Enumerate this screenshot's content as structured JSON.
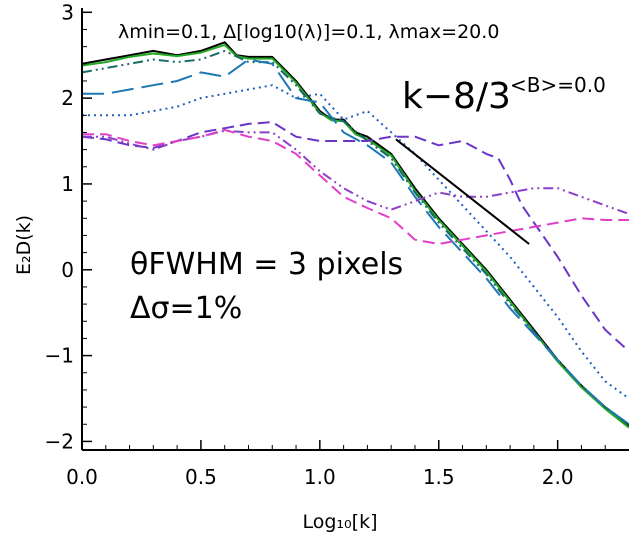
{
  "chart_data": {
    "type": "line",
    "xlabel": "Log₁₀[k]",
    "ylabel": "E₂D(k)",
    "xlim": [
      0.0,
      2.3
    ],
    "ylim": [
      -2.1,
      3.05
    ],
    "x_ticks": [
      0.0,
      0.5,
      1.0,
      1.5,
      2.0
    ],
    "x_tick_labels": [
      "0.0",
      "0.5",
      "1.0",
      "1.5",
      "2.0"
    ],
    "y_ticks": [
      -2,
      -1,
      0,
      1,
      2,
      3
    ],
    "y_tick_labels": [
      "−2",
      "−1",
      "0",
      "1",
      "2",
      "3"
    ],
    "grid": false,
    "annotations": {
      "params_text": "λmin=0.1, Δ[log10(λ)]=0.1, λmax=20.0",
      "slope_label": "k−8/3",
      "b_label": "<B>=0.0",
      "theta_label": "θFWHM = 3 pixels",
      "sigma_label": "Δσ=1%"
    },
    "reference_line": {
      "x": [
        1.32,
        1.88
      ],
      "y": [
        1.52,
        0.3
      ],
      "color": "#000000"
    },
    "series": [
      {
        "color": "#000000",
        "dash": "solid",
        "x": [
          0.0,
          0.1,
          0.2,
          0.3,
          0.4,
          0.5,
          0.6,
          0.65,
          0.7,
          0.8,
          0.9,
          1.0,
          1.05,
          1.1,
          1.15,
          1.2,
          1.3,
          1.4,
          1.5,
          1.6,
          1.7,
          1.8,
          1.9,
          2.0,
          2.1,
          2.2,
          2.3
        ],
        "y": [
          2.4,
          2.45,
          2.5,
          2.55,
          2.5,
          2.55,
          2.65,
          2.5,
          2.48,
          2.48,
          2.2,
          1.85,
          1.75,
          1.75,
          1.6,
          1.55,
          1.35,
          0.95,
          0.6,
          0.3,
          0.0,
          -0.35,
          -0.7,
          -1.05,
          -1.35,
          -1.6,
          -1.82
        ]
      },
      {
        "color": "#22aa22",
        "dash": "solid",
        "x": [
          0.0,
          0.1,
          0.2,
          0.3,
          0.4,
          0.5,
          0.6,
          0.65,
          0.7,
          0.8,
          0.9,
          1.0,
          1.05,
          1.1,
          1.15,
          1.2,
          1.3,
          1.4,
          1.5,
          1.6,
          1.7,
          1.8,
          1.9,
          2.0,
          2.1,
          2.2,
          2.3
        ],
        "y": [
          2.38,
          2.42,
          2.48,
          2.52,
          2.49,
          2.53,
          2.62,
          2.49,
          2.46,
          2.46,
          2.18,
          1.83,
          1.74,
          1.73,
          1.58,
          1.52,
          1.33,
          0.92,
          0.58,
          0.28,
          -0.02,
          -0.37,
          -0.72,
          -1.07,
          -1.37,
          -1.62,
          -1.84
        ]
      },
      {
        "color": "#1a6a6a",
        "dash": "dashdotdot",
        "x": [
          0.0,
          0.1,
          0.2,
          0.3,
          0.4,
          0.5,
          0.6,
          0.7,
          0.8,
          0.9,
          1.0,
          1.1,
          1.2,
          1.3,
          1.4,
          1.5,
          1.6,
          1.7,
          1.8,
          1.9,
          2.0,
          2.1,
          2.2,
          2.3
        ],
        "y": [
          2.3,
          2.35,
          2.4,
          2.45,
          2.42,
          2.45,
          2.55,
          2.42,
          2.42,
          2.15,
          1.82,
          1.73,
          1.5,
          1.3,
          0.9,
          0.55,
          0.25,
          -0.05,
          -0.4,
          -0.72,
          -1.05,
          -1.35,
          -1.6,
          -1.8
        ]
      },
      {
        "color": "#1f77b4",
        "dash": "longdash",
        "x": [
          0.0,
          0.1,
          0.2,
          0.3,
          0.4,
          0.5,
          0.6,
          0.7,
          0.8,
          0.9,
          1.0,
          1.1,
          1.2,
          1.3,
          1.4,
          1.5,
          1.6,
          1.7,
          1.8,
          1.9,
          2.0,
          2.1,
          2.2,
          2.3
        ],
        "y": [
          2.05,
          2.05,
          2.1,
          2.15,
          2.2,
          2.3,
          2.25,
          2.45,
          2.4,
          2.0,
          1.95,
          1.6,
          1.45,
          1.25,
          0.85,
          0.5,
          0.2,
          -0.1,
          -0.45,
          -0.75,
          -1.05,
          -1.35,
          -1.6,
          -1.8
        ]
      },
      {
        "color": "#2060c0",
        "dash": "dotted",
        "x": [
          0.0,
          0.1,
          0.2,
          0.3,
          0.4,
          0.5,
          0.6,
          0.7,
          0.8,
          0.9,
          1.0,
          1.1,
          1.2,
          1.3,
          1.4,
          1.5,
          1.6,
          1.7,
          1.8,
          1.9,
          2.0,
          2.1,
          2.2,
          2.3
        ],
        "y": [
          1.8,
          1.8,
          1.8,
          1.85,
          1.9,
          2.0,
          2.05,
          2.1,
          2.15,
          2.0,
          2.05,
          1.75,
          1.85,
          1.6,
          1.35,
          1.05,
          0.75,
          0.45,
          0.15,
          -0.2,
          -0.55,
          -0.95,
          -1.3,
          -1.5
        ]
      },
      {
        "color": "#6a35c8",
        "dash": "dashed",
        "x": [
          0.0,
          0.1,
          0.2,
          0.3,
          0.4,
          0.5,
          0.6,
          0.7,
          0.8,
          0.9,
          1.0,
          1.1,
          1.2,
          1.3,
          1.4,
          1.5,
          1.6,
          1.7,
          1.75,
          1.8,
          1.85,
          1.9,
          2.0,
          2.1,
          2.2,
          2.3
        ],
        "y": [
          1.55,
          1.52,
          1.45,
          1.42,
          1.5,
          1.6,
          1.65,
          1.7,
          1.72,
          1.55,
          1.5,
          1.5,
          1.5,
          1.55,
          1.55,
          1.45,
          1.5,
          1.35,
          1.3,
          1.05,
          0.75,
          0.55,
          0.15,
          -0.3,
          -0.7,
          -0.95
        ]
      },
      {
        "color": "#8a3fc8",
        "dash": "dashdotdot",
        "x": [
          0.0,
          0.1,
          0.2,
          0.3,
          0.4,
          0.5,
          0.6,
          0.7,
          0.8,
          0.9,
          1.0,
          1.1,
          1.2,
          1.3,
          1.4,
          1.5,
          1.6,
          1.7,
          1.8,
          1.9,
          2.0,
          2.1,
          2.2,
          2.3
        ],
        "y": [
          1.55,
          1.55,
          1.47,
          1.4,
          1.5,
          1.55,
          1.62,
          1.6,
          1.6,
          1.4,
          1.15,
          0.95,
          0.8,
          0.7,
          0.8,
          0.9,
          0.85,
          0.85,
          0.9,
          0.95,
          0.95,
          0.85,
          0.75,
          0.65
        ]
      },
      {
        "color": "#e040c8",
        "dash": "dashed",
        "x": [
          0.0,
          0.1,
          0.2,
          0.3,
          0.4,
          0.5,
          0.6,
          0.7,
          0.8,
          0.9,
          1.0,
          1.1,
          1.2,
          1.3,
          1.4,
          1.5,
          1.6,
          1.7,
          1.8,
          1.9,
          2.0,
          2.1,
          2.2,
          2.3
        ],
        "y": [
          1.58,
          1.58,
          1.5,
          1.45,
          1.5,
          1.55,
          1.63,
          1.55,
          1.5,
          1.35,
          1.1,
          0.85,
          0.72,
          0.6,
          0.35,
          0.3,
          0.35,
          0.4,
          0.45,
          0.5,
          0.55,
          0.6,
          0.58,
          0.58
        ]
      }
    ]
  }
}
